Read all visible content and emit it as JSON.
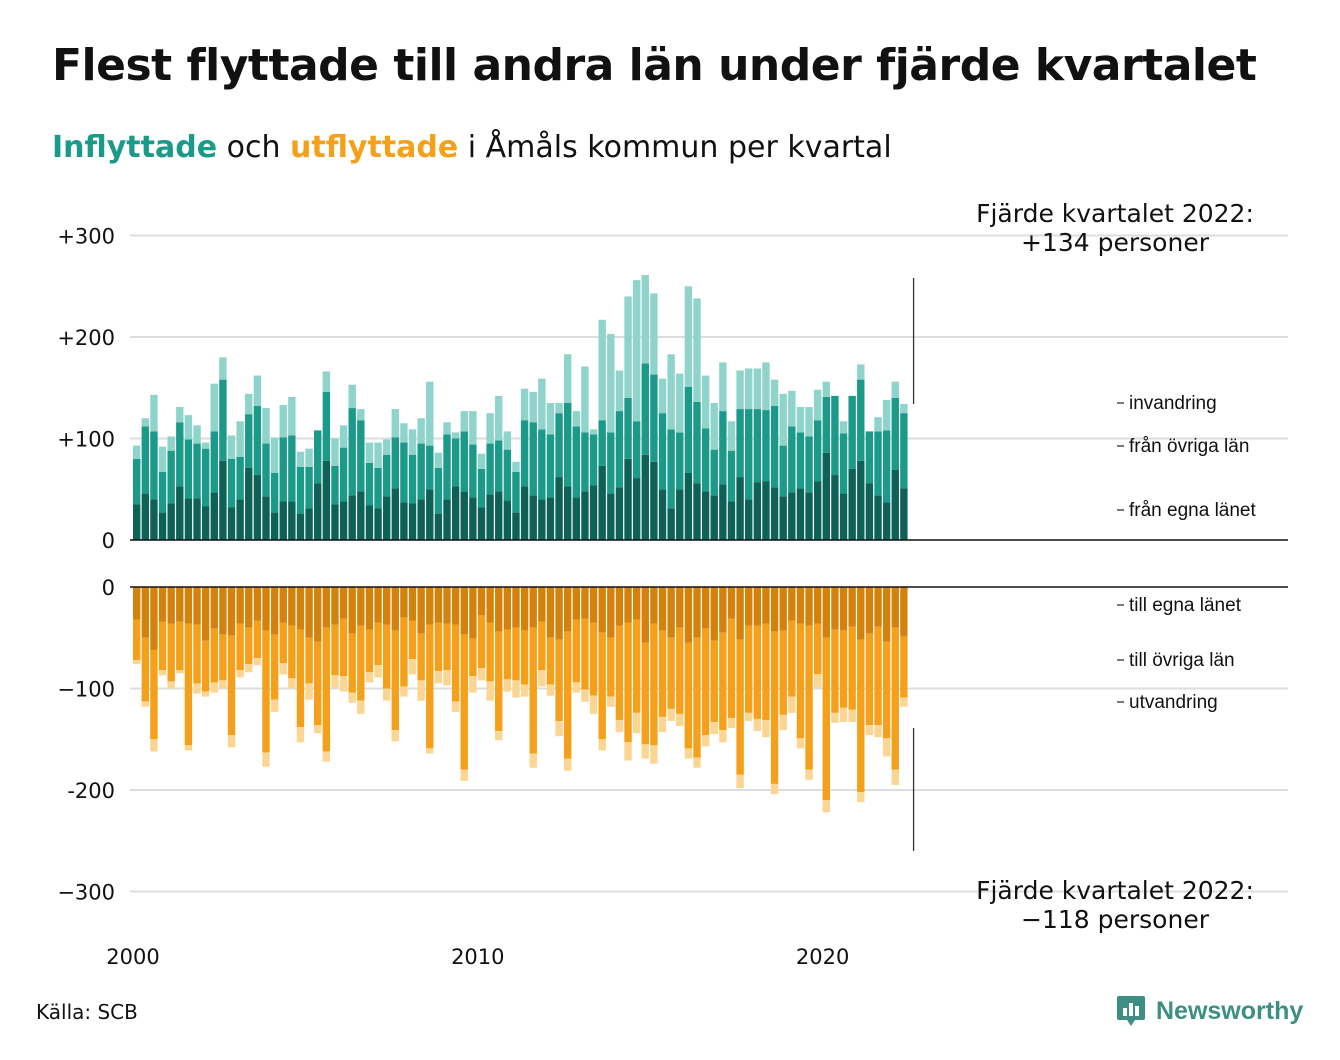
{
  "title": "Flest flyttade till andra län under fjärde kvartalet",
  "subtitle": {
    "part_in": "Inflyttade",
    "part_mid": " och ",
    "part_out": "utflyttade",
    "part_rest": " i Åmåls kommun per kvartal"
  },
  "source": "Källa: SCB",
  "logo": {
    "text": "Newsworthy",
    "icon": "bar-chart-speech-icon"
  },
  "colors": {
    "in_own": "#0e6157",
    "in_other": "#1b9a8a",
    "in_immig": "#8fd4cb",
    "out_own": "#d4820e",
    "out_other": "#f5a01a",
    "out_emig": "#fbd592",
    "grid": "#dddddd",
    "axis": "#111111"
  },
  "chart_data": {
    "type": "bar",
    "stacked": true,
    "x_unit": "quarter",
    "x_start": "2000 Q1",
    "x_ticks": [
      "2000",
      "2010",
      "2020"
    ],
    "y_ticks_top": [
      "+300",
      "+200",
      "+100",
      "0"
    ],
    "y_ticks_bottom": [
      "0",
      "−100",
      "-200",
      "−300"
    ],
    "ylim_top": [
      0,
      300
    ],
    "ylim_bottom": [
      -300,
      0
    ],
    "grid": true,
    "series_labels_in": [
      "invandring",
      "från övriga län",
      "från egna länet"
    ],
    "series_labels_out": [
      "till egna länet",
      "till övriga län",
      "utvandring"
    ],
    "annotation_top": {
      "line1": "Fjärde kvartalet 2022:",
      "line2": "+134 personer"
    },
    "annotation_bottom": {
      "line1": "Fjärde kvartalet 2022:",
      "line2": "−118 personer"
    },
    "in": {
      "own": [
        35,
        46,
        40,
        27,
        36,
        53,
        41,
        41,
        33,
        47,
        78,
        32,
        40,
        71,
        64,
        43,
        27,
        38,
        38,
        26,
        31,
        56,
        78,
        35,
        38,
        44,
        48,
        34,
        31,
        43,
        51,
        37,
        36,
        40,
        50,
        26,
        40,
        53,
        48,
        42,
        32,
        45,
        48,
        39,
        27,
        53,
        44,
        40,
        42,
        62,
        53,
        42,
        48,
        54,
        73,
        46,
        52,
        80,
        61,
        84,
        77,
        50,
        31,
        50,
        66,
        56,
        48,
        44,
        55,
        38,
        62,
        40,
        57,
        58,
        52,
        43,
        47,
        51,
        47,
        58,
        86,
        64,
        46,
        70,
        78,
        56,
        44,
        37,
        69,
        51
      ],
      "other": [
        45,
        66,
        67,
        40,
        52,
        63,
        58,
        54,
        57,
        60,
        80,
        48,
        42,
        53,
        68,
        52,
        39,
        63,
        65,
        46,
        41,
        52,
        68,
        38,
        53,
        86,
        70,
        42,
        40,
        41,
        50,
        59,
        48,
        55,
        43,
        45,
        64,
        47,
        59,
        52,
        38,
        50,
        50,
        50,
        40,
        65,
        72,
        69,
        62,
        63,
        82,
        70,
        58,
        50,
        45,
        60,
        75,
        60,
        56,
        90,
        86,
        75,
        78,
        56,
        85,
        80,
        62,
        45,
        72,
        50,
        67,
        89,
        72,
        70,
        80,
        50,
        65,
        55,
        55,
        60,
        55,
        78,
        59,
        72,
        80,
        51,
        63,
        71,
        71,
        74
      ],
      "immig": [
        13,
        8,
        36,
        25,
        14,
        15,
        24,
        18,
        6,
        47,
        22,
        23,
        35,
        20,
        30,
        35,
        35,
        32,
        38,
        15,
        18,
        0,
        20,
        27,
        22,
        23,
        11,
        20,
        25,
        15,
        28,
        19,
        25,
        25,
        63,
        15,
        12,
        6,
        20,
        33,
        15,
        30,
        44,
        18,
        10,
        31,
        30,
        50,
        31,
        10,
        48,
        15,
        65,
        5,
        99,
        97,
        40,
        100,
        139,
        87,
        80,
        34,
        74,
        58,
        99,
        102,
        52,
        46,
        48,
        29,
        38,
        40,
        40,
        47,
        26,
        51,
        35,
        25,
        29,
        30,
        15,
        0,
        12,
        0,
        15,
        0,
        14,
        30,
        16,
        9
      ]
    },
    "out": {
      "own": [
        32,
        50,
        62,
        34,
        36,
        34,
        36,
        37,
        53,
        41,
        47,
        48,
        36,
        40,
        33,
        43,
        47,
        35,
        38,
        42,
        50,
        54,
        40,
        37,
        31,
        46,
        38,
        42,
        35,
        37,
        43,
        30,
        33,
        46,
        37,
        35,
        36,
        37,
        47,
        51,
        28,
        35,
        44,
        42,
        40,
        43,
        40,
        34,
        50,
        52,
        44,
        32,
        31,
        35,
        45,
        50,
        38,
        35,
        32,
        55,
        36,
        43,
        50,
        40,
        55,
        50,
        41,
        53,
        45,
        31,
        52,
        38,
        38,
        36,
        44,
        43,
        33,
        36,
        38,
        36,
        50,
        42,
        43,
        39,
        52,
        46,
        39,
        54,
        40,
        49
      ],
      "other": [
        40,
        63,
        88,
        48,
        57,
        48,
        120,
        58,
        50,
        53,
        45,
        98,
        46,
        36,
        37,
        120,
        64,
        40,
        52,
        96,
        45,
        82,
        122,
        50,
        57,
        58,
        74,
        42,
        42,
        63,
        98,
        68,
        38,
        46,
        122,
        48,
        46,
        76,
        133,
        37,
        52,
        58,
        98,
        49,
        52,
        53,
        124,
        48,
        46,
        80,
        125,
        62,
        70,
        72,
        105,
        58,
        93,
        118,
        92,
        100,
        120,
        85,
        70,
        85,
        104,
        118,
        105,
        80,
        96,
        98,
        133,
        86,
        92,
        95,
        150,
        83,
        75,
        113,
        142,
        50,
        160,
        82,
        76,
        82,
        150,
        90,
        97,
        95,
        140,
        60
      ],
      "emig": [
        4,
        5,
        12,
        5,
        7,
        3,
        5,
        10,
        5,
        10,
        8,
        12,
        7,
        8,
        7,
        14,
        12,
        11,
        10,
        15,
        16,
        8,
        10,
        12,
        15,
        10,
        13,
        10,
        12,
        12,
        11,
        10,
        15,
        20,
        5,
        12,
        15,
        10,
        11,
        16,
        12,
        19,
        9,
        12,
        17,
        12,
        14,
        16,
        11,
        15,
        12,
        10,
        12,
        18,
        11,
        10,
        12,
        18,
        20,
        14,
        18,
        15,
        12,
        12,
        10,
        10,
        11,
        12,
        12,
        10,
        13,
        8,
        12,
        17,
        10,
        15,
        16,
        10,
        10,
        13,
        12,
        10,
        14,
        12,
        10,
        10,
        12,
        18,
        15,
        9
      ]
    }
  }
}
